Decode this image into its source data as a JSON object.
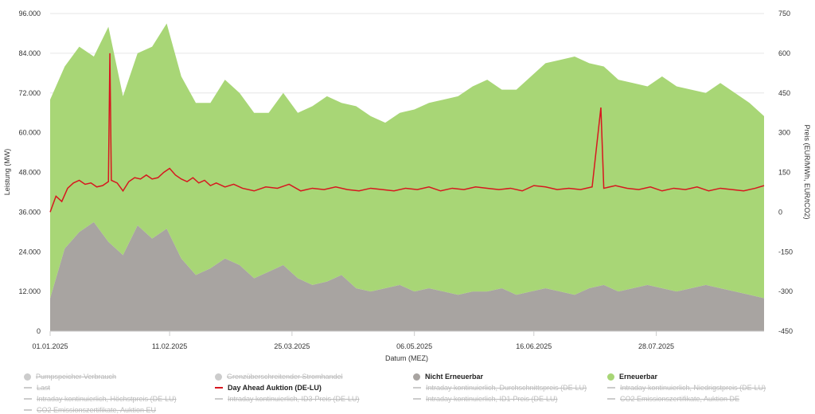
{
  "chart_data": {
    "type": "area",
    "xlabel": "Datum (MEZ)",
    "ylabel_left": "Leistung (MW)",
    "ylabel_right": "Preis (EUR/MWh, EUR/tCO2)",
    "ylim_left": [
      0,
      96000
    ],
    "ylim_right": [
      -450,
      750
    ],
    "yticks_left": [
      "0",
      "12.000",
      "24.000",
      "36.000",
      "48.000",
      "60.000",
      "72.000",
      "84.000",
      "96.000"
    ],
    "yticks_right": [
      "-450",
      "-300",
      "-150",
      "0",
      "150",
      "300",
      "450",
      "600",
      "750"
    ],
    "x_range_days": [
      0,
      245
    ],
    "xticks": [
      {
        "day": 0,
        "label": "01.01.2025"
      },
      {
        "day": 41,
        "label": "11.02.2025"
      },
      {
        "day": 83,
        "label": "25.03.2025"
      },
      {
        "day": 125,
        "label": "06.05.2025"
      },
      {
        "day": 166,
        "label": "16.06.2025"
      },
      {
        "day": 208,
        "label": "28.07.2025"
      }
    ],
    "series": [
      {
        "name": "Nicht Erneuerbar",
        "axis": "left",
        "color": "#a8a4a1",
        "stacked": true,
        "points": [
          [
            0,
            10000
          ],
          [
            5,
            25000
          ],
          [
            10,
            30000
          ],
          [
            15,
            33000
          ],
          [
            20,
            27000
          ],
          [
            25,
            23000
          ],
          [
            30,
            32000
          ],
          [
            35,
            28000
          ],
          [
            40,
            31000
          ],
          [
            45,
            22000
          ],
          [
            50,
            17000
          ],
          [
            55,
            19000
          ],
          [
            60,
            22000
          ],
          [
            65,
            20000
          ],
          [
            70,
            16000
          ],
          [
            75,
            18000
          ],
          [
            80,
            20000
          ],
          [
            85,
            16000
          ],
          [
            90,
            14000
          ],
          [
            95,
            15000
          ],
          [
            100,
            17000
          ],
          [
            105,
            13000
          ],
          [
            110,
            12000
          ],
          [
            115,
            13000
          ],
          [
            120,
            14000
          ],
          [
            125,
            12000
          ],
          [
            130,
            13000
          ],
          [
            135,
            12000
          ],
          [
            140,
            11000
          ],
          [
            145,
            12000
          ],
          [
            150,
            12000
          ],
          [
            155,
            13000
          ],
          [
            160,
            11000
          ],
          [
            165,
            12000
          ],
          [
            170,
            13000
          ],
          [
            175,
            12000
          ],
          [
            180,
            11000
          ],
          [
            185,
            13000
          ],
          [
            190,
            14000
          ],
          [
            195,
            12000
          ],
          [
            200,
            13000
          ],
          [
            205,
            14000
          ],
          [
            210,
            13000
          ],
          [
            215,
            12000
          ],
          [
            220,
            13000
          ],
          [
            225,
            14000
          ],
          [
            230,
            13000
          ],
          [
            235,
            12000
          ],
          [
            240,
            11000
          ],
          [
            245,
            10000
          ]
        ]
      },
      {
        "name": "Erneuerbar",
        "axis": "left",
        "color": "#a8d676",
        "stacked": true,
        "points": [
          [
            0,
            60000
          ],
          [
            5,
            55000
          ],
          [
            10,
            56000
          ],
          [
            15,
            50000
          ],
          [
            20,
            65000
          ],
          [
            25,
            48000
          ],
          [
            30,
            52000
          ],
          [
            35,
            58000
          ],
          [
            40,
            62000
          ],
          [
            45,
            55000
          ],
          [
            50,
            52000
          ],
          [
            55,
            50000
          ],
          [
            60,
            54000
          ],
          [
            65,
            52000
          ],
          [
            70,
            50000
          ],
          [
            75,
            48000
          ],
          [
            80,
            52000
          ],
          [
            85,
            50000
          ],
          [
            90,
            54000
          ],
          [
            95,
            56000
          ],
          [
            100,
            52000
          ],
          [
            105,
            55000
          ],
          [
            110,
            53000
          ],
          [
            115,
            50000
          ],
          [
            120,
            52000
          ],
          [
            125,
            55000
          ],
          [
            130,
            56000
          ],
          [
            135,
            58000
          ],
          [
            140,
            60000
          ],
          [
            145,
            62000
          ],
          [
            150,
            64000
          ],
          [
            155,
            60000
          ],
          [
            160,
            62000
          ],
          [
            165,
            65000
          ],
          [
            170,
            68000
          ],
          [
            175,
            70000
          ],
          [
            180,
            72000
          ],
          [
            185,
            68000
          ],
          [
            190,
            66000
          ],
          [
            195,
            64000
          ],
          [
            200,
            62000
          ],
          [
            205,
            60000
          ],
          [
            210,
            64000
          ],
          [
            215,
            62000
          ],
          [
            220,
            60000
          ],
          [
            225,
            58000
          ],
          [
            230,
            62000
          ],
          [
            235,
            60000
          ],
          [
            240,
            58000
          ],
          [
            245,
            55000
          ]
        ]
      },
      {
        "name": "Day Ahead Auktion (DE-LU)",
        "axis": "right",
        "color": "#d7171f",
        "points": [
          [
            0,
            0
          ],
          [
            2,
            60
          ],
          [
            4,
            40
          ],
          [
            6,
            90
          ],
          [
            8,
            110
          ],
          [
            10,
            120
          ],
          [
            12,
            105
          ],
          [
            14,
            110
          ],
          [
            16,
            95
          ],
          [
            18,
            100
          ],
          [
            20,
            115
          ],
          [
            20.5,
            600
          ],
          [
            21,
            120
          ],
          [
            23,
            110
          ],
          [
            25,
            80
          ],
          [
            27,
            115
          ],
          [
            29,
            130
          ],
          [
            31,
            125
          ],
          [
            33,
            140
          ],
          [
            35,
            125
          ],
          [
            37,
            130
          ],
          [
            39,
            150
          ],
          [
            41,
            165
          ],
          [
            43,
            140
          ],
          [
            45,
            125
          ],
          [
            47,
            115
          ],
          [
            49,
            130
          ],
          [
            51,
            110
          ],
          [
            53,
            120
          ],
          [
            55,
            100
          ],
          [
            57,
            110
          ],
          [
            60,
            95
          ],
          [
            63,
            105
          ],
          [
            66,
            90
          ],
          [
            70,
            80
          ],
          [
            74,
            95
          ],
          [
            78,
            90
          ],
          [
            82,
            105
          ],
          [
            86,
            80
          ],
          [
            90,
            90
          ],
          [
            94,
            85
          ],
          [
            98,
            95
          ],
          [
            102,
            85
          ],
          [
            106,
            80
          ],
          [
            110,
            90
          ],
          [
            114,
            85
          ],
          [
            118,
            80
          ],
          [
            122,
            90
          ],
          [
            126,
            85
          ],
          [
            130,
            95
          ],
          [
            134,
            80
          ],
          [
            138,
            90
          ],
          [
            142,
            85
          ],
          [
            146,
            95
          ],
          [
            150,
            90
          ],
          [
            154,
            85
          ],
          [
            158,
            90
          ],
          [
            162,
            80
          ],
          [
            166,
            100
          ],
          [
            170,
            95
          ],
          [
            174,
            85
          ],
          [
            178,
            90
          ],
          [
            182,
            85
          ],
          [
            186,
            95
          ],
          [
            189,
            395
          ],
          [
            190,
            90
          ],
          [
            194,
            100
          ],
          [
            198,
            90
          ],
          [
            202,
            85
          ],
          [
            206,
            95
          ],
          [
            210,
            80
          ],
          [
            214,
            90
          ],
          [
            218,
            85
          ],
          [
            222,
            95
          ],
          [
            226,
            80
          ],
          [
            230,
            90
          ],
          [
            234,
            85
          ],
          [
            238,
            80
          ],
          [
            242,
            90
          ],
          [
            245,
            100
          ]
        ]
      }
    ],
    "legend": [
      {
        "name": "Pumpspeicher Verbrauch",
        "kind": "dot",
        "color": "#cccccc",
        "visible": false
      },
      {
        "name": "Grenzüberschreitender Stromhandel",
        "kind": "dot",
        "color": "#cccccc",
        "visible": false
      },
      {
        "name": "Nicht Erneuerbar",
        "kind": "dot",
        "color": "#a8a4a1",
        "visible": true
      },
      {
        "name": "Erneuerbar",
        "kind": "dot",
        "color": "#a8d676",
        "visible": true
      },
      {
        "name": "Last",
        "kind": "line",
        "color": "#cccccc",
        "visible": false
      },
      {
        "name": "Day Ahead Auktion (DE-LU)",
        "kind": "line",
        "color": "#d7171f",
        "visible": true
      },
      {
        "name": "Intraday kontinuierlich, Durchschnittspreis (DE-LU)",
        "kind": "line",
        "color": "#cccccc",
        "visible": false
      },
      {
        "name": "Intraday kontinuierlich, Niedrigstpreis (DE-LU)",
        "kind": "line",
        "color": "#cccccc",
        "visible": false
      },
      {
        "name": "Intraday kontinuierlich, Höchstpreis (DE-LU)",
        "kind": "line",
        "color": "#cccccc",
        "visible": false
      },
      {
        "name": "Intraday kontinuierlich, ID3-Preis (DE-LU)",
        "kind": "line",
        "color": "#cccccc",
        "visible": false
      },
      {
        "name": "Intraday kontinuierlich, ID1-Preis (DE-LU)",
        "kind": "line",
        "color": "#cccccc",
        "visible": false
      },
      {
        "name": "CO2 Emissionszertifikate, Auktion DE",
        "kind": "line",
        "color": "#cccccc",
        "visible": false
      },
      {
        "name": "CO2 Emissionszertifikate, Auktion EU",
        "kind": "line",
        "color": "#cccccc",
        "visible": false
      }
    ]
  }
}
